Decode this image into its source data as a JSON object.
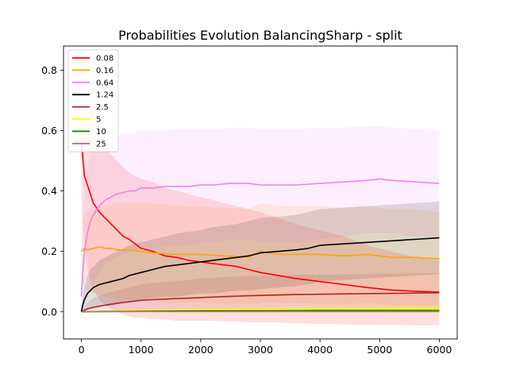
{
  "chart_data": {
    "type": "line",
    "title": "Probabilities Evolution BalancingSharp  - split",
    "xlabel": "",
    "ylabel": "",
    "xlim": [
      -300,
      6300
    ],
    "ylim": [
      -0.09,
      0.88
    ],
    "xticks": [
      0,
      1000,
      2000,
      3000,
      4000,
      5000,
      6000
    ],
    "xtick_labels": [
      "0",
      "1000",
      "2000",
      "3000",
      "4000",
      "5000",
      "6000"
    ],
    "yticks": [
      0.0,
      0.2,
      0.4,
      0.6,
      0.8
    ],
    "ytick_labels": [
      "0.0",
      "0.2",
      "0.4",
      "0.6",
      "0.8"
    ],
    "grid": false,
    "legend_position": "top-left",
    "series": [
      {
        "name": "0.08",
        "color": "#ff0000",
        "band_opacity": 0.13,
        "x": [
          0,
          20,
          50,
          100,
          150,
          200,
          300,
          400,
          500,
          600,
          700,
          800,
          900,
          1000,
          1200,
          1400,
          1600,
          1800,
          2000,
          2200,
          2400,
          2600,
          2800,
          3000,
          3300,
          3600,
          4000,
          4400,
          4800,
          5200,
          5600,
          6000
        ],
        "y": [
          0.56,
          0.52,
          0.45,
          0.42,
          0.39,
          0.36,
          0.33,
          0.31,
          0.29,
          0.27,
          0.25,
          0.24,
          0.225,
          0.21,
          0.2,
          0.185,
          0.18,
          0.17,
          0.165,
          0.16,
          0.155,
          0.15,
          0.14,
          0.13,
          0.12,
          0.11,
          0.1,
          0.09,
          0.08,
          0.072,
          0.068,
          0.065
        ],
        "lower": [
          0.4,
          0.3,
          0.22,
          0.15,
          0.1,
          0.07,
          0.04,
          0.02,
          0.01,
          0.0,
          -0.01,
          -0.015,
          -0.02,
          -0.02,
          -0.025,
          -0.025,
          -0.03,
          -0.03,
          -0.03,
          -0.03,
          -0.032,
          -0.032,
          -0.035,
          -0.035,
          -0.035,
          -0.038,
          -0.04,
          -0.042,
          -0.043,
          -0.044,
          -0.045,
          -0.045
        ],
        "upper": [
          0.64,
          0.63,
          0.62,
          0.61,
          0.6,
          0.58,
          0.56,
          0.54,
          0.52,
          0.5,
          0.48,
          0.46,
          0.45,
          0.44,
          0.43,
          0.41,
          0.4,
          0.39,
          0.38,
          0.37,
          0.36,
          0.35,
          0.34,
          0.33,
          0.31,
          0.29,
          0.27,
          0.25,
          0.22,
          0.2,
          0.18,
          0.17
        ]
      },
      {
        "name": "0.16",
        "color": "#ffa500",
        "band_opacity": 0.13,
        "x": [
          0,
          50,
          100,
          200,
          300,
          400,
          500,
          600,
          800,
          1000,
          1200,
          1500,
          1800,
          2000,
          2400,
          2800,
          3000,
          3300,
          3600,
          4000,
          4400,
          4800,
          5200,
          5600,
          6000
        ],
        "y": [
          0.2,
          0.21,
          0.205,
          0.21,
          0.215,
          0.21,
          0.21,
          0.205,
          0.205,
          0.2,
          0.195,
          0.19,
          0.19,
          0.19,
          0.185,
          0.18,
          0.2,
          0.19,
          0.19,
          0.19,
          0.185,
          0.19,
          0.18,
          0.18,
          0.175
        ],
        "lower": [
          0.1,
          0.08,
          0.07,
          0.06,
          0.055,
          0.05,
          0.05,
          0.045,
          0.04,
          0.04,
          0.035,
          0.03,
          0.03,
          0.03,
          0.025,
          0.025,
          0.03,
          0.03,
          0.03,
          0.025,
          0.025,
          0.03,
          0.02,
          0.02,
          0.02
        ],
        "upper": [
          0.3,
          0.32,
          0.33,
          0.34,
          0.35,
          0.35,
          0.36,
          0.36,
          0.36,
          0.36,
          0.36,
          0.355,
          0.35,
          0.35,
          0.345,
          0.34,
          0.36,
          0.35,
          0.35,
          0.35,
          0.345,
          0.35,
          0.34,
          0.34,
          0.33
        ]
      },
      {
        "name": "0.64",
        "color": "#ee82ee",
        "band_opacity": 0.13,
        "x": [
          0,
          20,
          50,
          100,
          150,
          200,
          300,
          400,
          500,
          600,
          700,
          800,
          900,
          1000,
          1200,
          1400,
          1600,
          1800,
          2000,
          2200,
          2500,
          2800,
          3000,
          3300,
          3600,
          4000,
          4400,
          4800,
          5000,
          5200,
          5600,
          6000
        ],
        "y": [
          0.05,
          0.12,
          0.2,
          0.26,
          0.3,
          0.32,
          0.35,
          0.37,
          0.38,
          0.39,
          0.395,
          0.4,
          0.4,
          0.41,
          0.41,
          0.415,
          0.415,
          0.415,
          0.42,
          0.42,
          0.425,
          0.425,
          0.42,
          0.42,
          0.42,
          0.425,
          0.43,
          0.435,
          0.44,
          0.435,
          0.43,
          0.425
        ],
        "lower": [
          0.0,
          0.0,
          0.02,
          0.05,
          0.08,
          0.1,
          0.13,
          0.16,
          0.17,
          0.18,
          0.19,
          0.2,
          0.2,
          0.21,
          0.21,
          0.22,
          0.22,
          0.22,
          0.23,
          0.23,
          0.24,
          0.24,
          0.23,
          0.23,
          0.23,
          0.24,
          0.25,
          0.26,
          0.26,
          0.26,
          0.25,
          0.25
        ],
        "upper": [
          0.1,
          0.3,
          0.4,
          0.48,
          0.52,
          0.54,
          0.56,
          0.57,
          0.58,
          0.585,
          0.59,
          0.59,
          0.595,
          0.6,
          0.6,
          0.6,
          0.605,
          0.605,
          0.605,
          0.605,
          0.61,
          0.61,
          0.605,
          0.605,
          0.605,
          0.61,
          0.61,
          0.615,
          0.615,
          0.61,
          0.605,
          0.6
        ]
      },
      {
        "name": "1.24",
        "color": "#000000",
        "band_opacity": 0.12,
        "x": [
          0,
          20,
          50,
          100,
          150,
          200,
          300,
          400,
          500,
          600,
          700,
          800,
          900,
          1000,
          1200,
          1400,
          1600,
          1800,
          2000,
          2200,
          2400,
          2600,
          2800,
          3000,
          3300,
          3600,
          3800,
          4000,
          4400,
          4800,
          5200,
          5600,
          6000
        ],
        "y": [
          0.0,
          0.02,
          0.04,
          0.06,
          0.07,
          0.08,
          0.09,
          0.095,
          0.1,
          0.105,
          0.11,
          0.12,
          0.125,
          0.13,
          0.14,
          0.15,
          0.155,
          0.16,
          0.165,
          0.17,
          0.175,
          0.18,
          0.185,
          0.195,
          0.2,
          0.205,
          0.21,
          0.22,
          0.225,
          0.23,
          0.235,
          0.24,
          0.245
        ],
        "lower": [
          0.0,
          0.0,
          0.0,
          0.005,
          0.01,
          0.01,
          0.015,
          0.02,
          0.02,
          0.025,
          0.03,
          0.03,
          0.035,
          0.04,
          0.045,
          0.05,
          0.05,
          0.055,
          0.06,
          0.06,
          0.065,
          0.07,
          0.07,
          0.075,
          0.08,
          0.085,
          0.09,
          0.1,
          0.105,
          0.11,
          0.115,
          0.12,
          0.125
        ],
        "upper": [
          0.0,
          0.05,
          0.08,
          0.12,
          0.14,
          0.15,
          0.17,
          0.18,
          0.19,
          0.2,
          0.21,
          0.22,
          0.225,
          0.23,
          0.24,
          0.25,
          0.26,
          0.265,
          0.27,
          0.28,
          0.285,
          0.29,
          0.3,
          0.31,
          0.315,
          0.32,
          0.33,
          0.34,
          0.345,
          0.35,
          0.355,
          0.36,
          0.365
        ]
      },
      {
        "name": "2.5",
        "color": "#a52a2a",
        "band_opacity": 0.12,
        "x": [
          0,
          100,
          200,
          400,
          600,
          800,
          1000,
          1200,
          1500,
          1800,
          2000,
          2400,
          2800,
          3200,
          3600,
          4000,
          4400,
          4800,
          5200,
          5600,
          6000
        ],
        "y": [
          0.0,
          0.01,
          0.015,
          0.022,
          0.028,
          0.033,
          0.038,
          0.04,
          0.043,
          0.045,
          0.047,
          0.05,
          0.053,
          0.055,
          0.057,
          0.058,
          0.059,
          0.06,
          0.061,
          0.062,
          0.063
        ],
        "lower": [
          0.0,
          0.0,
          0.0,
          0.0,
          0.0,
          0.0,
          0.0,
          0.0,
          0.0,
          0.0,
          0.0,
          0.0,
          0.0,
          0.0,
          0.0,
          0.0,
          0.0,
          0.0,
          0.0,
          0.0,
          0.0
        ],
        "upper": [
          0.0,
          0.03,
          0.045,
          0.06,
          0.07,
          0.08,
          0.09,
          0.095,
          0.1,
          0.105,
          0.11,
          0.115,
          0.118,
          0.12,
          0.122,
          0.123,
          0.124,
          0.125,
          0.126,
          0.127,
          0.128
        ]
      },
      {
        "name": "5",
        "color": "#ffff00",
        "band_opacity": 0.35,
        "x": [
          0,
          500,
          1000,
          2000,
          3000,
          4000,
          5000,
          6000
        ],
        "y": [
          0.0,
          0.002,
          0.004,
          0.006,
          0.008,
          0.009,
          0.01,
          0.01
        ],
        "lower": [
          0.0,
          0.0,
          0.0,
          0.0,
          0.0,
          0.0,
          0.0,
          0.0
        ],
        "upper": [
          0.0,
          0.005,
          0.008,
          0.012,
          0.015,
          0.017,
          0.019,
          0.02
        ]
      },
      {
        "name": "10",
        "color": "#008000",
        "band_opacity": 0.25,
        "x": [
          0,
          1000,
          2000,
          3000,
          4000,
          5000,
          6000
        ],
        "y": [
          0.0,
          0.002,
          0.003,
          0.003,
          0.004,
          0.004,
          0.004
        ],
        "lower": [
          0.0,
          0.0,
          0.0,
          0.0,
          0.0,
          0.0,
          0.0
        ],
        "upper": [
          0.0,
          0.004,
          0.005,
          0.006,
          0.007,
          0.007,
          0.007
        ]
      },
      {
        "name": "25",
        "color": "#aa7777",
        "band_opacity": 0.25,
        "x": [
          0,
          1000,
          2000,
          3000,
          4000,
          5000,
          6000
        ],
        "y": [
          0.0,
          0.001,
          0.001,
          0.001,
          0.001,
          0.001,
          0.001
        ],
        "lower": [
          0.0,
          0.0,
          0.0,
          0.0,
          0.0,
          0.0,
          0.0
        ],
        "upper": [
          0.0,
          0.002,
          0.002,
          0.002,
          0.002,
          0.002,
          0.002
        ]
      }
    ]
  }
}
